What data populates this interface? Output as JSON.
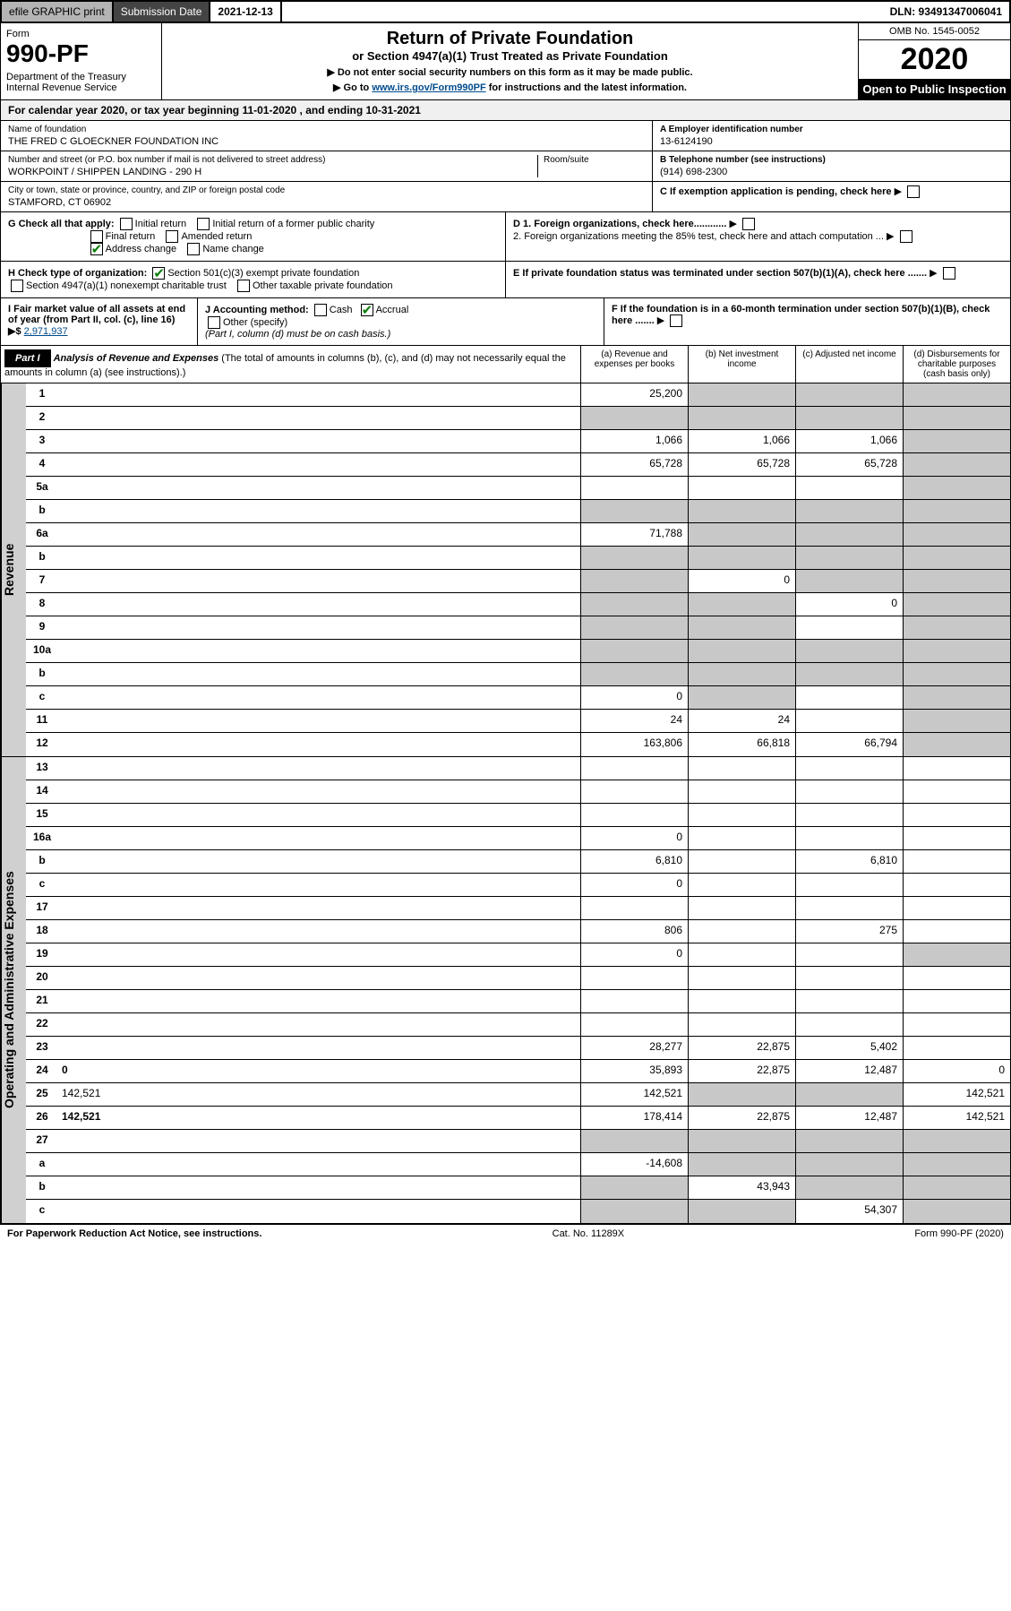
{
  "topbar": {
    "efile": "efile GRAPHIC print",
    "sub_label": "Submission Date",
    "sub_date": "2021-12-13",
    "dln": "DLN: 93491347006041"
  },
  "header": {
    "form_label": "Form",
    "form_num": "990-PF",
    "dept": "Department of the Treasury\nInternal Revenue Service",
    "title": "Return of Private Foundation",
    "subtitle": "or Section 4947(a)(1) Trust Treated as Private Foundation",
    "note1": "▶ Do not enter social security numbers on this form as it may be made public.",
    "note2_pre": "▶ Go to ",
    "note2_link": "www.irs.gov/Form990PF",
    "note2_post": " for instructions and the latest information.",
    "omb": "OMB No. 1545-0052",
    "year": "2020",
    "open": "Open to Public Inspection"
  },
  "cal_year": {
    "text_pre": "For calendar year 2020, or tax year beginning ",
    "begin": "11-01-2020",
    "text_mid": " , and ending ",
    "end": "10-31-2021"
  },
  "foundation": {
    "name_lbl": "Name of foundation",
    "name": "THE FRED C GLOECKNER FOUNDATION INC",
    "addr_lbl": "Number and street (or P.O. box number if mail is not delivered to street address)",
    "addr": "WORKPOINT / SHIPPEN LANDING - 290 H",
    "room_lbl": "Room/suite",
    "city_lbl": "City or town, state or province, country, and ZIP or foreign postal code",
    "city": "STAMFORD, CT  06902",
    "ein_lbl": "A Employer identification number",
    "ein": "13-6124190",
    "phone_lbl": "B Telephone number (see instructions)",
    "phone": "(914) 698-2300",
    "c_lbl": "C If exemption application is pending, check here",
    "d1_lbl": "D 1. Foreign organizations, check here............",
    "d2_lbl": "2. Foreign organizations meeting the 85% test, check here and attach computation ...",
    "e_lbl": "E If private foundation status was terminated under section 507(b)(1)(A), check here .......",
    "f_lbl": "F If the foundation is in a 60-month termination under section 507(b)(1)(B), check here .......",
    "g_lbl": "G Check all that apply:",
    "g_opts": [
      "Initial return",
      "Initial return of a former public charity",
      "Final return",
      "Amended return",
      "Address change",
      "Name change"
    ],
    "h_lbl": "H Check type of organization:",
    "h_opts": [
      "Section 501(c)(3) exempt private foundation",
      "Section 4947(a)(1) nonexempt charitable trust",
      "Other taxable private foundation"
    ],
    "i_lbl": "I Fair market value of all assets at end of year (from Part II, col. (c), line 16) ▶$",
    "i_val": "2,971,937",
    "j_lbl": "J Accounting method:",
    "j_opts": [
      "Cash",
      "Accrual",
      "Other (specify)"
    ],
    "j_note": "(Part I, column (d) must be on cash basis.)"
  },
  "part": {
    "label": "Part I",
    "title": "Analysis of Revenue and Expenses",
    "desc": "(The total of amounts in columns (b), (c), and (d) may not necessarily equal the amounts in column (a) (see instructions).)",
    "col_a": "(a) Revenue and expenses per books",
    "col_b": "(b) Net investment income",
    "col_c": "(c) Adjusted net income",
    "col_d": "(d) Disbursements for charitable purposes (cash basis only)"
  },
  "revenue_label": "Revenue",
  "expenses_label": "Operating and Administrative Expenses",
  "rows_rev": [
    {
      "n": "1",
      "d": "",
      "a": "25,200",
      "b": "",
      "c": "",
      "grey": [
        "b",
        "c",
        "d"
      ]
    },
    {
      "n": "2",
      "d": "",
      "a": "",
      "b": "",
      "c": "",
      "grey": [
        "a",
        "b",
        "c",
        "d"
      ]
    },
    {
      "n": "3",
      "d": "",
      "a": "1,066",
      "b": "1,066",
      "c": "1,066",
      "grey": [
        "d"
      ]
    },
    {
      "n": "4",
      "d": "",
      "a": "65,728",
      "b": "65,728",
      "c": "65,728",
      "grey": [
        "d"
      ]
    },
    {
      "n": "5a",
      "d": "",
      "a": "",
      "b": "",
      "c": "",
      "grey": [
        "d"
      ]
    },
    {
      "n": "b",
      "d": "",
      "a": "",
      "b": "",
      "c": "",
      "grey": [
        "a",
        "b",
        "c",
        "d"
      ]
    },
    {
      "n": "6a",
      "d": "",
      "a": "71,788",
      "b": "",
      "c": "",
      "grey": [
        "b",
        "c",
        "d"
      ]
    },
    {
      "n": "b",
      "d": "",
      "a": "",
      "b": "",
      "c": "",
      "grey": [
        "a",
        "b",
        "c",
        "d"
      ]
    },
    {
      "n": "7",
      "d": "",
      "a": "",
      "b": "0",
      "c": "",
      "grey": [
        "a",
        "c",
        "d"
      ]
    },
    {
      "n": "8",
      "d": "",
      "a": "",
      "b": "",
      "c": "0",
      "grey": [
        "a",
        "b",
        "d"
      ]
    },
    {
      "n": "9",
      "d": "",
      "a": "",
      "b": "",
      "c": "",
      "grey": [
        "a",
        "b",
        "d"
      ]
    },
    {
      "n": "10a",
      "d": "",
      "a": "",
      "b": "",
      "c": "",
      "grey": [
        "a",
        "b",
        "c",
        "d"
      ]
    },
    {
      "n": "b",
      "d": "",
      "a": "",
      "b": "",
      "c": "",
      "grey": [
        "a",
        "b",
        "c",
        "d"
      ]
    },
    {
      "n": "c",
      "d": "",
      "a": "0",
      "b": "",
      "c": "",
      "grey": [
        "b",
        "d"
      ]
    },
    {
      "n": "11",
      "d": "",
      "a": "24",
      "b": "24",
      "c": "",
      "grey": [
        "d"
      ]
    },
    {
      "n": "12",
      "d": "",
      "a": "163,806",
      "b": "66,818",
      "c": "66,794",
      "grey": [
        "d"
      ],
      "bold": true
    }
  ],
  "rows_exp": [
    {
      "n": "13",
      "d": "",
      "a": "",
      "b": "",
      "c": ""
    },
    {
      "n": "14",
      "d": "",
      "a": "",
      "b": "",
      "c": ""
    },
    {
      "n": "15",
      "d": "",
      "a": "",
      "b": "",
      "c": ""
    },
    {
      "n": "16a",
      "d": "",
      "a": "0",
      "b": "",
      "c": ""
    },
    {
      "n": "b",
      "d": "",
      "a": "6,810",
      "b": "",
      "c": "6,810"
    },
    {
      "n": "c",
      "d": "",
      "a": "0",
      "b": "",
      "c": ""
    },
    {
      "n": "17",
      "d": "",
      "a": "",
      "b": "",
      "c": ""
    },
    {
      "n": "18",
      "d": "",
      "a": "806",
      "b": "",
      "c": "275"
    },
    {
      "n": "19",
      "d": "",
      "a": "0",
      "b": "",
      "c": "",
      "grey": [
        "d"
      ]
    },
    {
      "n": "20",
      "d": "",
      "a": "",
      "b": "",
      "c": ""
    },
    {
      "n": "21",
      "d": "",
      "a": "",
      "b": "",
      "c": ""
    },
    {
      "n": "22",
      "d": "",
      "a": "",
      "b": "",
      "c": ""
    },
    {
      "n": "23",
      "d": "",
      "a": "28,277",
      "b": "22,875",
      "c": "5,402"
    },
    {
      "n": "24",
      "d": "0",
      "a": "35,893",
      "b": "22,875",
      "c": "12,487",
      "bold": true
    },
    {
      "n": "25",
      "d": "142,521",
      "a": "142,521",
      "b": "",
      "c": "",
      "grey": [
        "b",
        "c"
      ]
    },
    {
      "n": "26",
      "d": "142,521",
      "a": "178,414",
      "b": "22,875",
      "c": "12,487",
      "bold": true
    },
    {
      "n": "27",
      "d": "",
      "a": "",
      "b": "",
      "c": "",
      "grey": [
        "a",
        "b",
        "c",
        "d"
      ]
    },
    {
      "n": "a",
      "d": "",
      "a": "-14,608",
      "b": "",
      "c": "",
      "grey": [
        "b",
        "c",
        "d"
      ],
      "bold": true
    },
    {
      "n": "b",
      "d": "",
      "a": "",
      "b": "43,943",
      "c": "",
      "grey": [
        "a",
        "c",
        "d"
      ],
      "bold": true
    },
    {
      "n": "c",
      "d": "",
      "a": "",
      "b": "",
      "c": "54,307",
      "grey": [
        "a",
        "b",
        "d"
      ],
      "bold": true
    }
  ],
  "footer": {
    "left": "For Paperwork Reduction Act Notice, see instructions.",
    "mid": "Cat. No. 11289X",
    "right": "Form 990-PF (2020)"
  }
}
